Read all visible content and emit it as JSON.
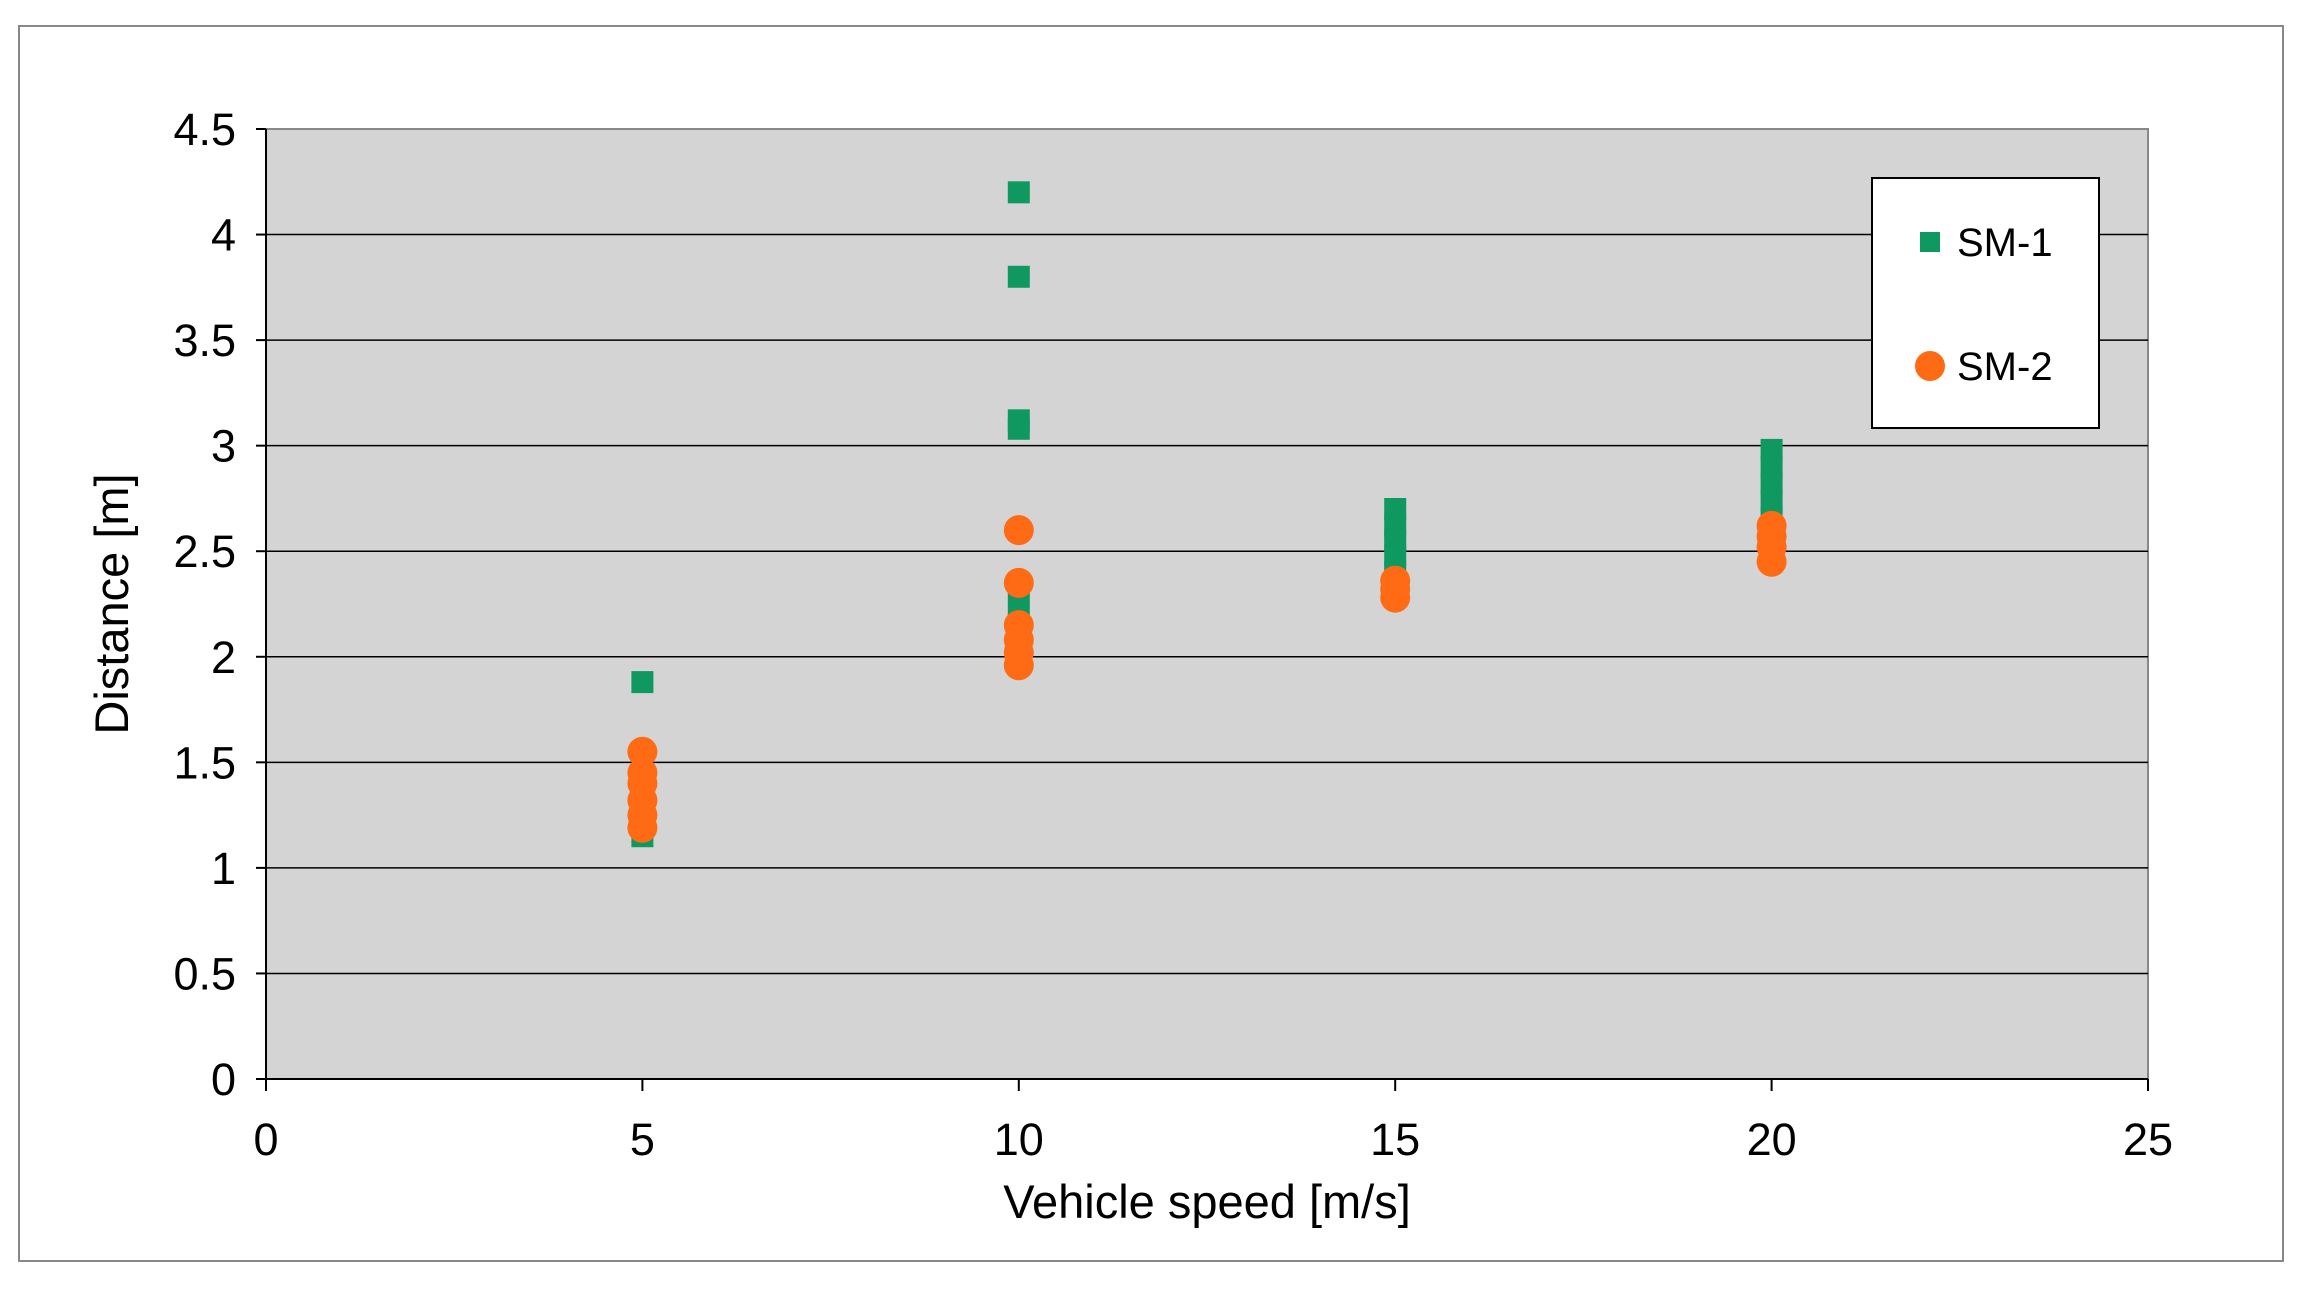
{
  "chart_data": {
    "type": "scatter",
    "title": "",
    "xlabel": "Vehicle speed [m/s]",
    "ylabel": "Distance [m]",
    "xlim": [
      0,
      25
    ],
    "ylim": [
      0,
      4.5
    ],
    "x_ticks": [
      "0",
      "5",
      "10",
      "15",
      "20",
      "25"
    ],
    "y_ticks": [
      "0",
      "0.5",
      "1",
      "1.5",
      "2",
      "2.5",
      "3",
      "3.5",
      "4",
      "4.5"
    ],
    "grid": "horizontal major gridlines",
    "legend_position": "top-right",
    "plot_background": "#d4d4d4",
    "series": [
      {
        "name": "SM-1",
        "marker": "square",
        "color": "#0f9960",
        "points": [
          {
            "x": 5,
            "y": 1.88
          },
          {
            "x": 5,
            "y": 1.15
          },
          {
            "x": 5,
            "y": 1.2
          },
          {
            "x": 5,
            "y": 1.25
          },
          {
            "x": 10,
            "y": 4.2
          },
          {
            "x": 10,
            "y": 3.8
          },
          {
            "x": 10,
            "y": 3.12
          },
          {
            "x": 10,
            "y": 3.08
          },
          {
            "x": 10,
            "y": 2.25
          },
          {
            "x": 10,
            "y": 2.15
          },
          {
            "x": 10,
            "y": 2.05
          },
          {
            "x": 15,
            "y": 2.7
          },
          {
            "x": 15,
            "y": 2.62
          },
          {
            "x": 15,
            "y": 2.55
          },
          {
            "x": 15,
            "y": 2.48
          },
          {
            "x": 15,
            "y": 2.4
          },
          {
            "x": 15,
            "y": 2.32
          },
          {
            "x": 20,
            "y": 2.98
          },
          {
            "x": 20,
            "y": 2.9
          },
          {
            "x": 20,
            "y": 2.82
          },
          {
            "x": 20,
            "y": 2.74
          },
          {
            "x": 20,
            "y": 2.66
          },
          {
            "x": 20,
            "y": 2.58
          }
        ]
      },
      {
        "name": "SM-2",
        "marker": "circle",
        "color": "#ff6a14",
        "points": [
          {
            "x": 5,
            "y": 1.55
          },
          {
            "x": 5,
            "y": 1.45
          },
          {
            "x": 5,
            "y": 1.4
          },
          {
            "x": 5,
            "y": 1.32
          },
          {
            "x": 5,
            "y": 1.25
          },
          {
            "x": 5,
            "y": 1.19
          },
          {
            "x": 10,
            "y": 2.6
          },
          {
            "x": 10,
            "y": 2.35
          },
          {
            "x": 10,
            "y": 2.15
          },
          {
            "x": 10,
            "y": 2.08
          },
          {
            "x": 10,
            "y": 2.02
          },
          {
            "x": 10,
            "y": 1.96
          },
          {
            "x": 15,
            "y": 2.36
          },
          {
            "x": 15,
            "y": 2.32
          },
          {
            "x": 15,
            "y": 2.28
          },
          {
            "x": 20,
            "y": 2.62
          },
          {
            "x": 20,
            "y": 2.57
          },
          {
            "x": 20,
            "y": 2.52
          },
          {
            "x": 20,
            "y": 2.45
          }
        ]
      }
    ]
  }
}
